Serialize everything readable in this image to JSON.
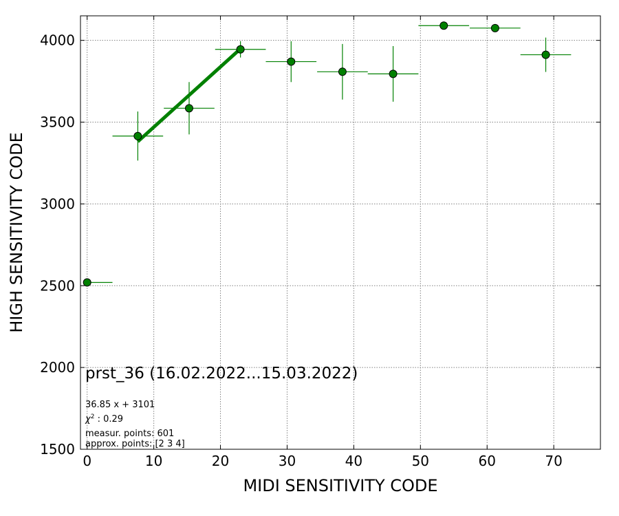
{
  "chart_data": {
    "type": "scatter",
    "xlabel": "MIDI SENSITIVITY CODE",
    "ylabel": "HIGH SENSITIVITY CODE",
    "xlim": [
      -1,
      77
    ],
    "ylim": [
      1500,
      4150
    ],
    "xticks": [
      "0",
      "10",
      "20",
      "30",
      "40",
      "50",
      "60",
      "70"
    ],
    "yticks": [
      "1500",
      "2000",
      "2500",
      "3000",
      "3500",
      "4000"
    ],
    "grid": true,
    "colors": {
      "points": "#008000",
      "errorbars": "#008000",
      "fit": "#008000",
      "grid": "#808080"
    },
    "points": [
      {
        "x": 0,
        "y": 2520,
        "xerr": [
          0,
          3.8
        ],
        "yerr": [
          0,
          0
        ]
      },
      {
        "x": 7.6,
        "y": 3415,
        "xerr": [
          3.8,
          3.8
        ],
        "yerr": [
          150,
          150
        ]
      },
      {
        "x": 15.3,
        "y": 3585,
        "xerr": [
          3.8,
          3.8
        ],
        "yerr": [
          160,
          160
        ]
      },
      {
        "x": 23,
        "y": 3945,
        "xerr": [
          3.8,
          3.8
        ],
        "yerr": [
          50,
          50
        ]
      },
      {
        "x": 30.6,
        "y": 3870,
        "xerr": [
          3.8,
          3.8
        ],
        "yerr": [
          125,
          125
        ]
      },
      {
        "x": 38.3,
        "y": 3808,
        "xerr": [
          3.8,
          3.8
        ],
        "yerr": [
          170,
          170
        ]
      },
      {
        "x": 45.9,
        "y": 3795,
        "xerr": [
          3.8,
          3.8
        ],
        "yerr": [
          170,
          170
        ]
      },
      {
        "x": 53.5,
        "y": 4090,
        "xerr": [
          3.8,
          3.8
        ],
        "yerr": [
          0,
          0
        ]
      },
      {
        "x": 61.2,
        "y": 4075,
        "xerr": [
          3.8,
          3.8
        ],
        "yerr": [
          0,
          0
        ]
      },
      {
        "x": 68.8,
        "y": 3912,
        "xerr": [
          3.8,
          3.8
        ],
        "yerr": [
          105,
          105
        ]
      }
    ],
    "fit": {
      "slope": 36.85,
      "intercept": 3101,
      "x_range": [
        7.6,
        23
      ]
    },
    "annotations": {
      "title": "prst_36 (16.02.2022...15.03.2022)",
      "equation": "36.85 x + 3101",
      "chi2": "0.29",
      "measur_points": "measur. points: 601",
      "approx_points": "approx. points: [2 3 4]"
    }
  }
}
